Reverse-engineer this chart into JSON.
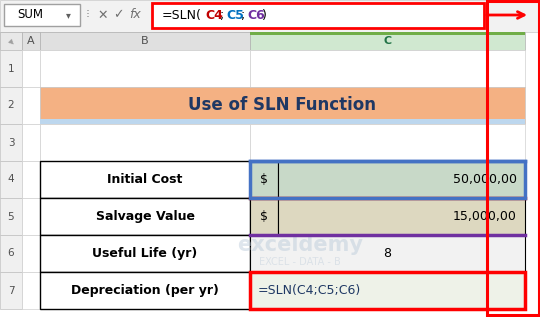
{
  "title": "Use of SLN Function",
  "title_color": "#1F3864",
  "title_bg": "#F4B183",
  "title_bg_bottom": "#BDD7EE",
  "formula_bar_text": "=SLN(C4;C5;C6)",
  "formula_bar_text_color_eq": "#000000",
  "formula_bar_text_color_c4": "#C00000",
  "formula_bar_text_color_c5": "#0070C0",
  "formula_bar_text_color_c6": "#7030A0",
  "name_box": "SUM",
  "rows": [
    {
      "label": "Initial Cost",
      "sym": "$",
      "value": "50,000,00",
      "bg": "#C8D9C8"
    },
    {
      "label": "Salvage Value",
      "sym": "$",
      "value": "15,000,00",
      "bg": "#DDD8C0"
    },
    {
      "label": "Useful Life (yr)",
      "sym": "",
      "value": "8",
      "bg": "#F2F2F2"
    },
    {
      "label": "Depreciation (per yr)",
      "sym": "",
      "value": "=SLN(C4;C5;C6)",
      "bg": "#EEF2E8"
    }
  ],
  "row_numbers": [
    "1",
    "2",
    "3",
    "4",
    "5",
    "6",
    "7"
  ],
  "watermark_line1": "exceldemy",
  "watermark_line2": "EXCEL - DATA - B",
  "bg_color": "#FFFFFF",
  "red_border": "#FF0000",
  "blue_border": "#4472C4",
  "dark_red_border": "#C00000",
  "purple_border": "#7030A0",
  "green_bar": "#70AD47",
  "formula_value_color": "#1F3864",
  "toolbar_bg": "#F2F2F2",
  "header_bg": "#E0E0E0",
  "header_c_bg": "#D0E8D0",
  "header_c_color": "#217346",
  "row_num_bg": "#F0F0F0",
  "border_color": "#000000",
  "cell_border": "#888888"
}
